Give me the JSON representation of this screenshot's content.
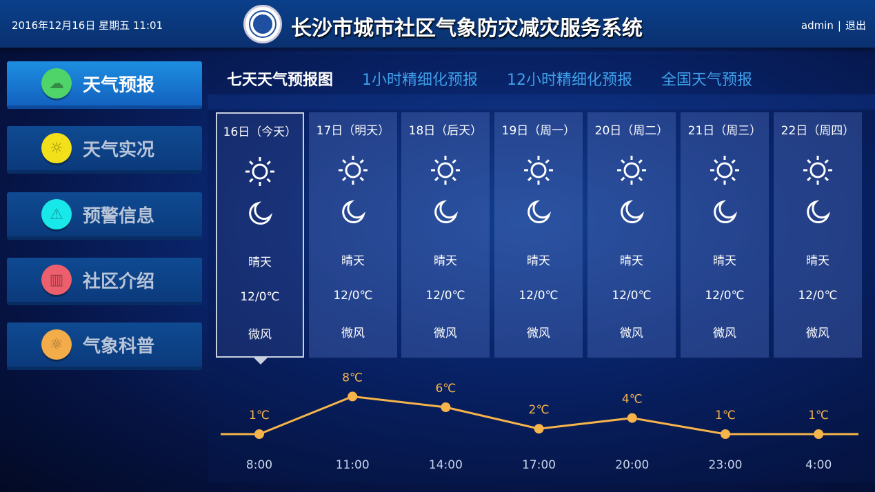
{
  "header": {
    "datetime": "2016年12月16日  星期五   11:01",
    "title": "长沙市城市社区气象防灾减灾服务系统",
    "user": "admin",
    "separator": "|",
    "logout": "退出"
  },
  "sidebar": {
    "items": [
      {
        "label": "天气预报",
        "icon": "cloud-rain-icon",
        "color": "#4fd46a",
        "active": true
      },
      {
        "label": "天气实况",
        "icon": "sun-icon",
        "color": "#f2e01a",
        "active": false
      },
      {
        "label": "预警信息",
        "icon": "warning-icon",
        "color": "#19e8ea",
        "active": false
      },
      {
        "label": "社区介绍",
        "icon": "community-icon",
        "color": "#ee5f6e",
        "active": false
      },
      {
        "label": "气象科普",
        "icon": "atom-icon",
        "color": "#f2ac4a",
        "active": false
      }
    ]
  },
  "tabs": [
    {
      "label": "七天天气预报图",
      "active": true
    },
    {
      "label": "1小时精细化预报"
    },
    {
      "label": "12小时精细化预报"
    },
    {
      "label": "全国天气预报"
    }
  ],
  "forecast": [
    {
      "day": "16日（今天）",
      "weather": "晴天",
      "temp": "12/0℃",
      "wind": "微风"
    },
    {
      "day": "17日（明天）",
      "weather": "晴天",
      "temp": "12/0℃",
      "wind": "微风"
    },
    {
      "day": "18日（后天）",
      "weather": "晴天",
      "temp": "12/0℃",
      "wind": "微风"
    },
    {
      "day": "19日（周一）",
      "weather": "晴天",
      "temp": "12/0℃",
      "wind": "微风"
    },
    {
      "day": "20日（周二）",
      "weather": "晴天",
      "temp": "12/0℃",
      "wind": "微风"
    },
    {
      "day": "21日（周三）",
      "weather": "晴天",
      "temp": "12/0℃",
      "wind": "微风"
    },
    {
      "day": "22日（周四）",
      "weather": "晴天",
      "temp": "12/0℃",
      "wind": "微风"
    }
  ],
  "chart_data": {
    "type": "line",
    "x": [
      "8:00",
      "11:00",
      "14:00",
      "17:00",
      "20:00",
      "23:00",
      "4:00"
    ],
    "values": [
      1,
      8,
      6,
      2,
      4,
      1,
      1
    ],
    "labels": [
      "1℃",
      "8℃",
      "6℃",
      "2℃",
      "4℃",
      "1℃",
      "1℃"
    ],
    "color": "#f6b44a",
    "grid": false
  }
}
